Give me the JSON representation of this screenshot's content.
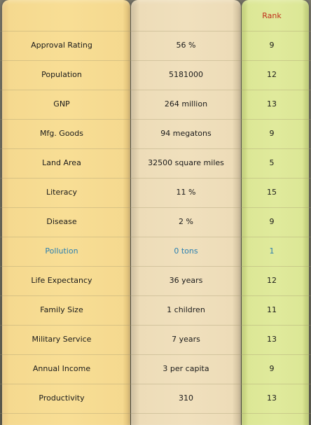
{
  "header": {
    "rank_label": "Rank"
  },
  "colors": {
    "labels_panel": "#f8de95",
    "values_panel": "#f0e0bd",
    "ranks_panel": "#e0ea9c",
    "rank_header": "#c0301a",
    "highlight_row": "#2a7fb0",
    "text": "#1a1a1a"
  },
  "rows": [
    {
      "label": "Approval Rating",
      "value": "56 %",
      "rank": "9",
      "highlighted": false
    },
    {
      "label": "Population",
      "value": "5181000",
      "rank": "12",
      "highlighted": false
    },
    {
      "label": "GNP",
      "value": "264 million",
      "rank": "13",
      "highlighted": false
    },
    {
      "label": "Mfg. Goods",
      "value": "94 megatons",
      "rank": "9",
      "highlighted": false
    },
    {
      "label": "Land Area",
      "value": "32500 square miles",
      "rank": "5",
      "highlighted": false
    },
    {
      "label": "Literacy",
      "value": "11 %",
      "rank": "15",
      "highlighted": false
    },
    {
      "label": "Disease",
      "value": "2 %",
      "rank": "9",
      "highlighted": false
    },
    {
      "label": "Pollution",
      "value": "0 tons",
      "rank": "1",
      "highlighted": true
    },
    {
      "label": "Life Expectancy",
      "value": "36 years",
      "rank": "12",
      "highlighted": false
    },
    {
      "label": "Family Size",
      "value": "1 children",
      "rank": "11",
      "highlighted": false
    },
    {
      "label": "Military Service",
      "value": "7 years",
      "rank": "13",
      "highlighted": false
    },
    {
      "label": "Annual Income",
      "value": "3 per capita",
      "rank": "9",
      "highlighted": false
    },
    {
      "label": "Productivity",
      "value": "310",
      "rank": "13",
      "highlighted": false
    }
  ]
}
